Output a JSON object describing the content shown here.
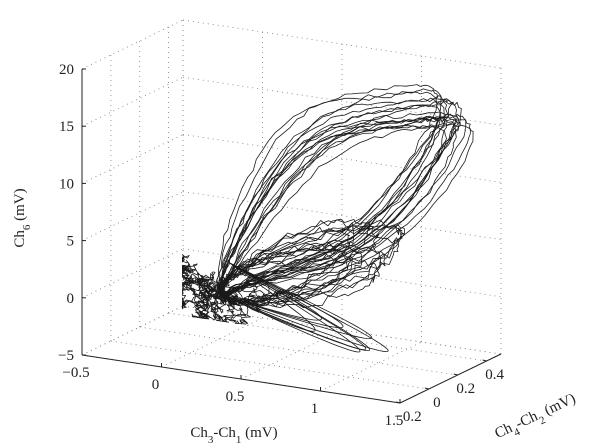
{
  "chart_data": {
    "type": "line3d",
    "x_axis": {
      "label_parts": [
        "Ch",
        "3",
        "-Ch",
        "1",
        " (mV)"
      ],
      "range": [
        -0.5,
        1.5
      ],
      "ticks": [
        "−0.5",
        "0",
        "0.5",
        "1",
        "1.5"
      ]
    },
    "y_axis": {
      "label_parts": [
        "Ch",
        "4",
        "-Ch",
        "2",
        " (mV)"
      ],
      "range": [
        -0.2,
        0.5
      ],
      "ticks": [
        "−0.2",
        "0",
        "0.2",
        "0.4"
      ]
    },
    "z_axis": {
      "label_parts": [
        "Ch",
        "6",
        " (mV)"
      ],
      "range": [
        -5,
        20
      ],
      "ticks": [
        "−5",
        "0",
        "5",
        "10",
        "15",
        "20"
      ]
    },
    "grid": true,
    "series": [
      {
        "style": "vectorcardiogram loops",
        "loops": 18,
        "baseline_cluster": {
          "x": 0.2,
          "y": 0.0,
          "z": 0.5
        },
        "peak": {
          "x": 1.3,
          "y": 0.3,
          "z": 17
        }
      }
    ]
  }
}
